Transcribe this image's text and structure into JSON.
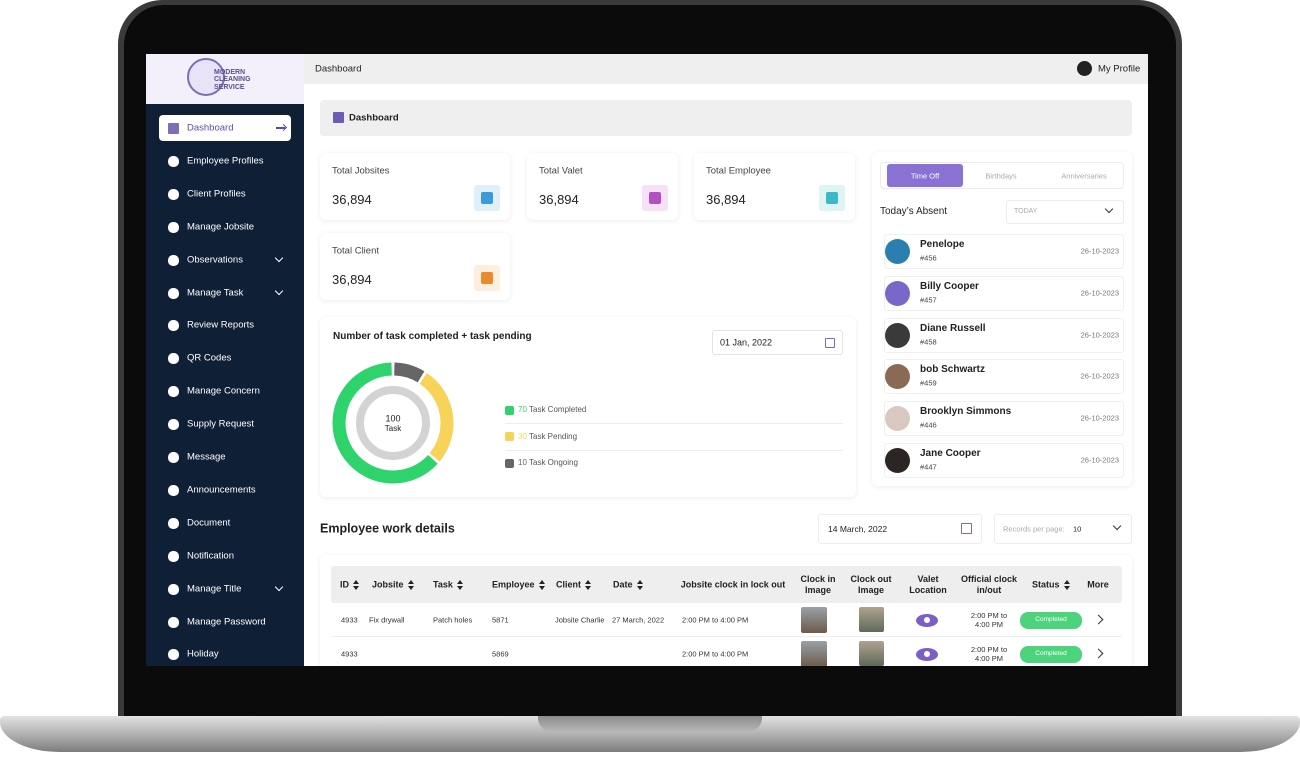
{
  "logo": {
    "name": "MODERN CLEANING SERVICE"
  },
  "header": {
    "page": "Dashboard",
    "profile": "My Profile"
  },
  "sidebar": [
    {
      "label": "Dashboard",
      "active": true
    },
    {
      "label": "Employee Profiles"
    },
    {
      "label": "Client Profiles"
    },
    {
      "label": "Manage Jobsite"
    },
    {
      "label": "Observations",
      "submenu": true
    },
    {
      "label": "Manage Task",
      "submenu": true
    },
    {
      "label": "Review Reports"
    },
    {
      "label": "QR Codes"
    },
    {
      "label": "Manage Concern"
    },
    {
      "label": "Supply Request"
    },
    {
      "label": "Message"
    },
    {
      "label": "Announcements"
    },
    {
      "label": "Document"
    },
    {
      "label": "Notification"
    },
    {
      "label": "Manage Title",
      "submenu": true
    },
    {
      "label": "Manage Password"
    },
    {
      "label": "Holiday"
    }
  ],
  "breadcrumb": "Dashboard",
  "stats": [
    {
      "label": "Total Jobsites",
      "value": "36,894",
      "color": "#dff0fb",
      "icon": "#3a9bd8"
    },
    {
      "label": "Total Valet",
      "value": "36,894",
      "color": "#f6e1f6",
      "icon": "#b44fc2"
    },
    {
      "label": "Total Employee",
      "value": "36,894",
      "color": "#def4f5",
      "icon": "#3cb8c9"
    },
    {
      "label": "Total Client",
      "value": "36,894",
      "color": "#fdeedd",
      "icon": "#e98a2c"
    }
  ],
  "chart_data": {
    "type": "donut",
    "title": "Number of task completed + task pending",
    "date": "01 Jan, 2022",
    "total": 100,
    "center_label": "Task",
    "series": [
      {
        "name": "Task Completed",
        "value": 70,
        "color": "#2fd36b"
      },
      {
        "name": "Task Pending",
        "value": 30,
        "color": "#f7d35a"
      },
      {
        "name": "Task Ongoing",
        "value": 10,
        "color": "#666666"
      }
    ]
  },
  "absent": {
    "tabs": [
      "Time Off",
      "Birthdays",
      "Anniversaries"
    ],
    "title": "Today’s Absent",
    "filter": "TODAY",
    "people": [
      {
        "name": "Penelope",
        "id": "#456",
        "date": "26-10-2023",
        "color": "#2a7fb0"
      },
      {
        "name": "Billy Cooper",
        "id": "#457",
        "date": "26-10-2023",
        "color": "#7a68c9"
      },
      {
        "name": "Diane Russell",
        "id": "#458",
        "date": "26-10-2023",
        "color": "#3a3a3a"
      },
      {
        "name": "bob Schwartz",
        "id": "#459",
        "date": "26-10-2023",
        "color": "#8a6a55"
      },
      {
        "name": "Brooklyn Simmons",
        "id": "#446",
        "date": "26-10-2023",
        "color": "#d9c8c0"
      },
      {
        "name": "Jane Cooper",
        "id": "#447",
        "date": "26-10-2023",
        "color": "#2b2623"
      }
    ]
  },
  "work": {
    "title": "Employee work details",
    "date": "14 March, 2022",
    "records_label": "Records per page:",
    "records": "10",
    "columns": [
      {
        "label": "ID",
        "sortable": true
      },
      {
        "label": "Jobsite",
        "sortable": true
      },
      {
        "label": "Task",
        "sortable": true
      },
      {
        "label": "Employee",
        "sortable": true
      },
      {
        "label": "Client",
        "sortable": true
      },
      {
        "label": "Date",
        "sortable": true
      },
      {
        "label": "Jobsite clock in lock out"
      },
      {
        "label": "Clock in Image"
      },
      {
        "label": "Clock out Image"
      },
      {
        "label": "Valet Location"
      },
      {
        "label": "Official clock in/out"
      },
      {
        "label": "Status",
        "sortable": true
      },
      {
        "label": "More"
      }
    ],
    "rows": [
      {
        "id": "4933",
        "jobsite": "Fix drywall",
        "task": "Patch holes",
        "employee": "5871",
        "client": "Jobsite Charlie",
        "date": "27 March, 2022",
        "clock": "2:00 PM to 4:00 PM",
        "official": "2:00 PM to 4:00 PM",
        "status": "Completed"
      },
      {
        "id": "4933",
        "employee": "5869",
        "clock": "2:00 PM to 4:00 PM",
        "official": "2:00 PM to 4:00 PM",
        "status": "Completed"
      }
    ]
  }
}
